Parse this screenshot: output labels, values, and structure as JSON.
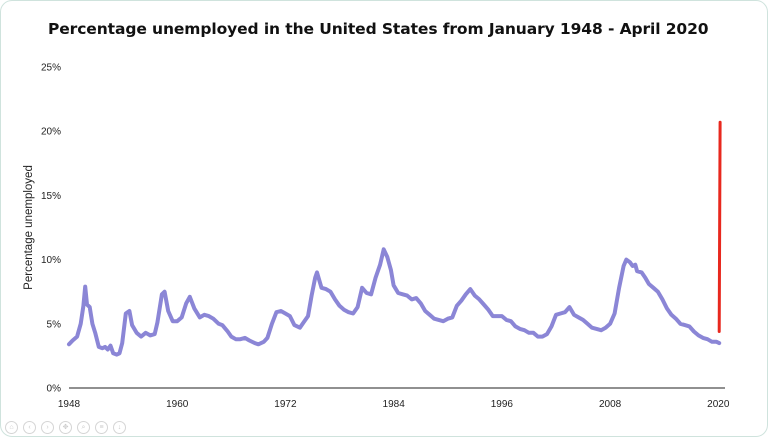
{
  "title": "Percentage unemployed in the United States from January 1948 - April 2020",
  "chart_data": {
    "type": "line",
    "title": "Percentage unemployed in the United States from January 1948 - April 2020",
    "xlabel": "",
    "ylabel": "Percentage unemployed",
    "xlim": [
      1948,
      2020.3
    ],
    "ylim": [
      0,
      25
    ],
    "x_ticks": [
      "1948",
      "1960",
      "1972",
      "1984",
      "1996",
      "2008",
      "2020"
    ],
    "y_ticks": [
      "0%",
      "5%",
      "10%",
      "15%",
      "20%",
      "25%"
    ],
    "grid": false,
    "series": [
      {
        "color": "#8b86d6",
        "points": [
          [
            1948.0,
            3.4
          ],
          [
            1948.4,
            3.7
          ],
          [
            1948.9,
            4.0
          ],
          [
            1949.3,
            5.0
          ],
          [
            1949.6,
            6.4
          ],
          [
            1949.8,
            7.9
          ],
          [
            1950.0,
            6.5
          ],
          [
            1950.3,
            6.3
          ],
          [
            1950.6,
            5.0
          ],
          [
            1950.9,
            4.3
          ],
          [
            1951.3,
            3.2
          ],
          [
            1951.7,
            3.1
          ],
          [
            1952.0,
            3.2
          ],
          [
            1952.3,
            3.0
          ],
          [
            1952.6,
            3.3
          ],
          [
            1952.9,
            2.7
          ],
          [
            1953.3,
            2.6
          ],
          [
            1953.6,
            2.7
          ],
          [
            1953.9,
            3.5
          ],
          [
            1954.3,
            5.8
          ],
          [
            1954.7,
            6.0
          ],
          [
            1955.0,
            4.9
          ],
          [
            1955.5,
            4.3
          ],
          [
            1956.0,
            4.0
          ],
          [
            1956.5,
            4.3
          ],
          [
            1957.0,
            4.1
          ],
          [
            1957.5,
            4.2
          ],
          [
            1957.8,
            5.1
          ],
          [
            1958.3,
            7.3
          ],
          [
            1958.6,
            7.5
          ],
          [
            1959.0,
            6.0
          ],
          [
            1959.5,
            5.2
          ],
          [
            1960.0,
            5.2
          ],
          [
            1960.5,
            5.5
          ],
          [
            1961.0,
            6.6
          ],
          [
            1961.4,
            7.1
          ],
          [
            1961.9,
            6.2
          ],
          [
            1962.5,
            5.5
          ],
          [
            1963.0,
            5.7
          ],
          [
            1963.5,
            5.6
          ],
          [
            1964.0,
            5.4
          ],
          [
            1964.6,
            5.0
          ],
          [
            1965.0,
            4.9
          ],
          [
            1965.6,
            4.4
          ],
          [
            1966.0,
            4.0
          ],
          [
            1966.5,
            3.8
          ],
          [
            1967.0,
            3.8
          ],
          [
            1967.5,
            3.9
          ],
          [
            1968.0,
            3.7
          ],
          [
            1968.6,
            3.5
          ],
          [
            1969.0,
            3.4
          ],
          [
            1969.6,
            3.6
          ],
          [
            1970.0,
            3.9
          ],
          [
            1970.5,
            5.0
          ],
          [
            1971.0,
            5.9
          ],
          [
            1971.5,
            6.0
          ],
          [
            1972.0,
            5.8
          ],
          [
            1972.5,
            5.6
          ],
          [
            1973.0,
            4.9
          ],
          [
            1973.6,
            4.7
          ],
          [
            1974.0,
            5.1
          ],
          [
            1974.5,
            5.6
          ],
          [
            1974.9,
            7.2
          ],
          [
            1975.3,
            8.6
          ],
          [
            1975.5,
            9.0
          ],
          [
            1976.0,
            7.8
          ],
          [
            1976.5,
            7.7
          ],
          [
            1977.0,
            7.5
          ],
          [
            1977.5,
            6.9
          ],
          [
            1978.0,
            6.4
          ],
          [
            1978.5,
            6.1
          ],
          [
            1979.0,
            5.9
          ],
          [
            1979.5,
            5.8
          ],
          [
            1980.0,
            6.3
          ],
          [
            1980.5,
            7.8
          ],
          [
            1981.0,
            7.4
          ],
          [
            1981.5,
            7.3
          ],
          [
            1982.0,
            8.6
          ],
          [
            1982.5,
            9.6
          ],
          [
            1982.9,
            10.8
          ],
          [
            1983.3,
            10.2
          ],
          [
            1983.7,
            9.2
          ],
          [
            1984.0,
            8.0
          ],
          [
            1984.5,
            7.4
          ],
          [
            1985.0,
            7.3
          ],
          [
            1985.5,
            7.2
          ],
          [
            1986.0,
            6.9
          ],
          [
            1986.5,
            7.0
          ],
          [
            1987.0,
            6.6
          ],
          [
            1987.5,
            6.0
          ],
          [
            1988.0,
            5.7
          ],
          [
            1988.5,
            5.4
          ],
          [
            1989.0,
            5.3
          ],
          [
            1989.5,
            5.2
          ],
          [
            1990.0,
            5.4
          ],
          [
            1990.5,
            5.5
          ],
          [
            1991.0,
            6.4
          ],
          [
            1991.5,
            6.8
          ],
          [
            1992.0,
            7.3
          ],
          [
            1992.5,
            7.7
          ],
          [
            1993.0,
            7.2
          ],
          [
            1993.5,
            6.9
          ],
          [
            1994.0,
            6.5
          ],
          [
            1994.5,
            6.1
          ],
          [
            1995.0,
            5.6
          ],
          [
            1995.5,
            5.6
          ],
          [
            1996.0,
            5.6
          ],
          [
            1996.5,
            5.3
          ],
          [
            1997.0,
            5.2
          ],
          [
            1997.5,
            4.8
          ],
          [
            1998.0,
            4.6
          ],
          [
            1998.5,
            4.5
          ],
          [
            1999.0,
            4.3
          ],
          [
            1999.5,
            4.3
          ],
          [
            2000.0,
            4.0
          ],
          [
            2000.5,
            4.0
          ],
          [
            2001.0,
            4.2
          ],
          [
            2001.5,
            4.8
          ],
          [
            2002.0,
            5.7
          ],
          [
            2002.5,
            5.8
          ],
          [
            2003.0,
            5.9
          ],
          [
            2003.5,
            6.3
          ],
          [
            2004.0,
            5.7
          ],
          [
            2004.5,
            5.5
          ],
          [
            2005.0,
            5.3
          ],
          [
            2005.5,
            5.0
          ],
          [
            2006.0,
            4.7
          ],
          [
            2006.5,
            4.6
          ],
          [
            2007.0,
            4.5
          ],
          [
            2007.5,
            4.7
          ],
          [
            2008.0,
            5.0
          ],
          [
            2008.5,
            5.8
          ],
          [
            2009.0,
            7.8
          ],
          [
            2009.5,
            9.5
          ],
          [
            2009.8,
            10.0
          ],
          [
            2010.2,
            9.8
          ],
          [
            2010.5,
            9.5
          ],
          [
            2010.8,
            9.6
          ],
          [
            2011.0,
            9.1
          ],
          [
            2011.5,
            9.0
          ],
          [
            2011.9,
            8.6
          ],
          [
            2012.3,
            8.1
          ],
          [
            2012.8,
            7.8
          ],
          [
            2013.3,
            7.5
          ],
          [
            2013.8,
            6.9
          ],
          [
            2014.3,
            6.2
          ],
          [
            2014.8,
            5.7
          ],
          [
            2015.3,
            5.4
          ],
          [
            2015.8,
            5.0
          ],
          [
            2016.3,
            4.9
          ],
          [
            2016.8,
            4.8
          ],
          [
            2017.3,
            4.4
          ],
          [
            2017.8,
            4.1
          ],
          [
            2018.3,
            3.9
          ],
          [
            2018.8,
            3.8
          ],
          [
            2019.3,
            3.6
          ],
          [
            2019.8,
            3.6
          ],
          [
            2020.1,
            3.5
          ]
        ]
      },
      {
        "color": "#e8281e",
        "points": [
          [
            2020.1,
            4.4
          ],
          [
            2020.2,
            20.7
          ]
        ]
      }
    ]
  }
}
